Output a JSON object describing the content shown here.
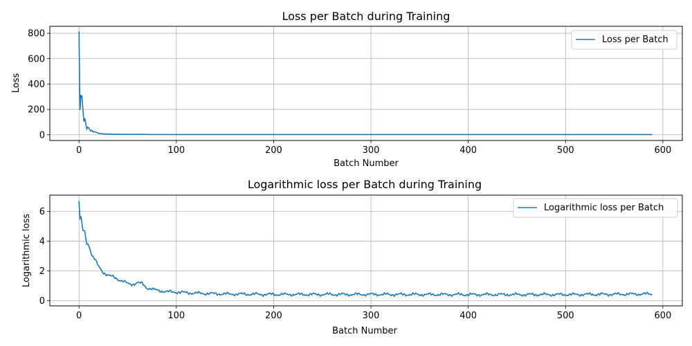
{
  "chart_data": [
    {
      "type": "line",
      "title": "Loss per Batch during Training",
      "xlabel": "Batch Number",
      "ylabel": "Loss",
      "xlim": [
        -30,
        620
      ],
      "ylim": [
        -45,
        855
      ],
      "xticks": [
        0,
        100,
        200,
        300,
        400,
        500,
        600
      ],
      "yticks": [
        0,
        200,
        400,
        600,
        800
      ],
      "grid": true,
      "legend_position": "top-right",
      "color": "#1f77b4",
      "series": [
        {
          "name": "Loss per Batch",
          "x": [
            0,
            1,
            2,
            3,
            4,
            5,
            6,
            7,
            8,
            9,
            10,
            11,
            12,
            13,
            14,
            15,
            16,
            18,
            20,
            22,
            25,
            28,
            30,
            35,
            40,
            45,
            50,
            55,
            60,
            65,
            70,
            80,
            90,
            100,
            150,
            200,
            300,
            400,
            500,
            589
          ],
          "values": [
            815,
            195,
            310,
            305,
            200,
            105,
            130,
            85,
            45,
            60,
            55,
            40,
            30,
            35,
            25,
            22,
            25,
            18,
            12,
            10,
            7,
            6,
            5.5,
            4.5,
            4,
            3.5,
            3,
            3,
            3,
            3.5,
            2.5,
            2,
            2,
            1.8,
            1.6,
            1.5,
            1.5,
            1.5,
            1.5,
            1.5
          ]
        }
      ]
    },
    {
      "type": "line",
      "title": "Logarithmic loss per Batch during Training",
      "xlabel": "Batch Number",
      "ylabel": "Logarithmic loss",
      "xlim": [
        -30,
        620
      ],
      "ylim": [
        -0.35,
        7.1
      ],
      "xticks": [
        0,
        100,
        200,
        300,
        400,
        500,
        600
      ],
      "yticks": [
        0,
        2,
        4,
        6
      ],
      "grid": true,
      "legend_position": "top-right",
      "color": "#1f77b4",
      "series": [
        {
          "name": "Logarithmic loss per Batch",
          "trend": {
            "x": [
              0,
              1,
              2,
              4,
              6,
              8,
              10,
              13,
              16,
              20,
              25,
              30,
              35,
              40,
              45,
              50,
              55,
              60,
              65,
              70,
              80,
              90,
              100,
              120,
              150,
              200,
              300,
              400,
              500,
              589
            ],
            "y": [
              6.7,
              5.5,
              5.6,
              4.7,
              4.6,
              3.8,
              3.8,
              3.1,
              2.8,
              2.3,
              1.9,
              1.7,
              1.6,
              1.45,
              1.3,
              1.15,
              1.1,
              1.2,
              1.15,
              0.85,
              0.7,
              0.6,
              0.58,
              0.5,
              0.45,
              0.42,
              0.42,
              0.41,
              0.41,
              0.45
            ]
          },
          "noise_amplitude": 0.12,
          "n_points": 590
        }
      ]
    }
  ]
}
